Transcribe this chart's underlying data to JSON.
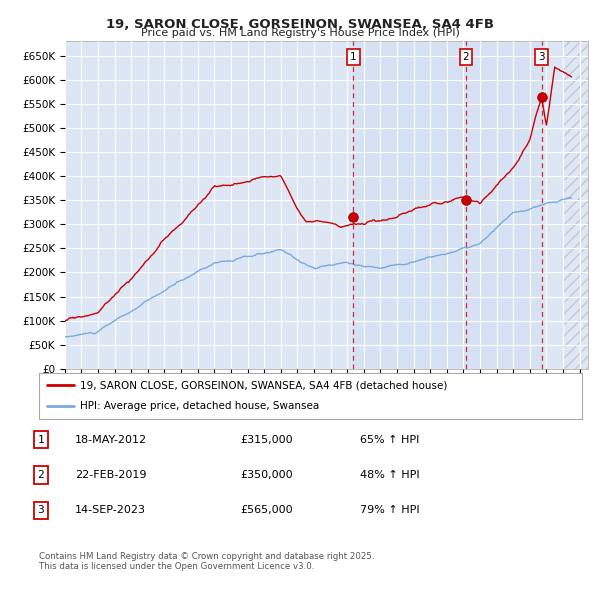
{
  "title": "19, SARON CLOSE, GORSEINON, SWANSEA, SA4 4FB",
  "subtitle": "Price paid vs. HM Land Registry's House Price Index (HPI)",
  "fig_bg_color": "#ffffff",
  "plot_bg_color": "#dce6f5",
  "grid_color": "#ffffff",
  "ylim": [
    0,
    680000
  ],
  "yticks": [
    0,
    50000,
    100000,
    150000,
    200000,
    250000,
    300000,
    350000,
    400000,
    450000,
    500000,
    550000,
    600000,
    650000
  ],
  "ytick_labels": [
    "£0",
    "£50K",
    "£100K",
    "£150K",
    "£200K",
    "£250K",
    "£300K",
    "£350K",
    "£400K",
    "£450K",
    "£500K",
    "£550K",
    "£600K",
    "£650K"
  ],
  "xlim_start": 1995.0,
  "xlim_end": 2026.5,
  "xticks": [
    1995,
    1996,
    1997,
    1998,
    1999,
    2000,
    2001,
    2002,
    2003,
    2004,
    2005,
    2006,
    2007,
    2008,
    2009,
    2010,
    2011,
    2012,
    2013,
    2014,
    2015,
    2016,
    2017,
    2018,
    2019,
    2020,
    2021,
    2022,
    2023,
    2024,
    2025,
    2026
  ],
  "red_line_color": "#cc0000",
  "blue_line_color": "#7aaadd",
  "shade_color": "#d0e0f5",
  "sale_dates": [
    2012.38,
    2019.14,
    2023.71
  ],
  "sale_prices": [
    315000,
    350000,
    565000
  ],
  "sale_labels": [
    "1",
    "2",
    "3"
  ],
  "sale1_date": "18-MAY-2012",
  "sale1_price": "£315,000",
  "sale1_hpi": "65% ↑ HPI",
  "sale2_date": "22-FEB-2019",
  "sale2_price": "£350,000",
  "sale2_hpi": "48% ↑ HPI",
  "sale3_date": "14-SEP-2023",
  "sale3_price": "£565,000",
  "sale3_hpi": "79% ↑ HPI",
  "footer": "Contains HM Land Registry data © Crown copyright and database right 2025.\nThis data is licensed under the Open Government Licence v3.0.",
  "legend_red": "19, SARON CLOSE, GORSEINON, SWANSEA, SA4 4FB (detached house)",
  "legend_blue": "HPI: Average price, detached house, Swansea"
}
